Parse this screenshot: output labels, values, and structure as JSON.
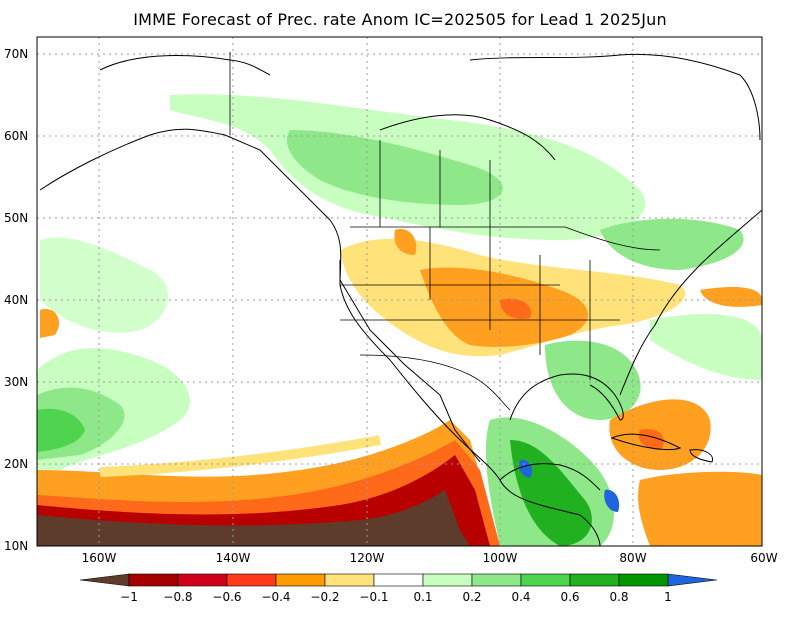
{
  "title": "IMME Forecast of Prec. rate Anom IC=202505 for Lead 1 2025Jun",
  "latitude_labels": [
    "70N",
    "60N",
    "50N",
    "40N",
    "30N",
    "20N",
    "10N"
  ],
  "longitude_labels": [
    "160W",
    "140W",
    "120W",
    "100W",
    "80W",
    "60W"
  ],
  "colorbar": {
    "labels": [
      "−1",
      "−0.8",
      "−0.6",
      "−0.4",
      "−0.2",
      "−0.1",
      "0.1",
      "0.2",
      "0.4",
      "0.6",
      "0.8",
      "1"
    ],
    "colors": [
      "#5e3c2c",
      "#a50000",
      "#d0001a",
      "#ff3a1a",
      "#ff9a00",
      "#ffe37a",
      "#ffffff",
      "#c8ffc0",
      "#8ee88a",
      "#4fd44f",
      "#20b020",
      "#009600",
      "#1e64dc"
    ]
  },
  "palette": {
    "dry_extreme": "#5e3c2c",
    "dry_strong": "#b80000",
    "dry_mid": "#ff6a1a",
    "dry_light": "#ffa020",
    "dry_weak": "#ffe37a",
    "wet_weak": "#c8ffc0",
    "wet_light": "#8ee88a",
    "wet_mid": "#4fd44f",
    "wet_strong": "#1e9a1e",
    "wet_extreme": "#1e64dc"
  }
}
